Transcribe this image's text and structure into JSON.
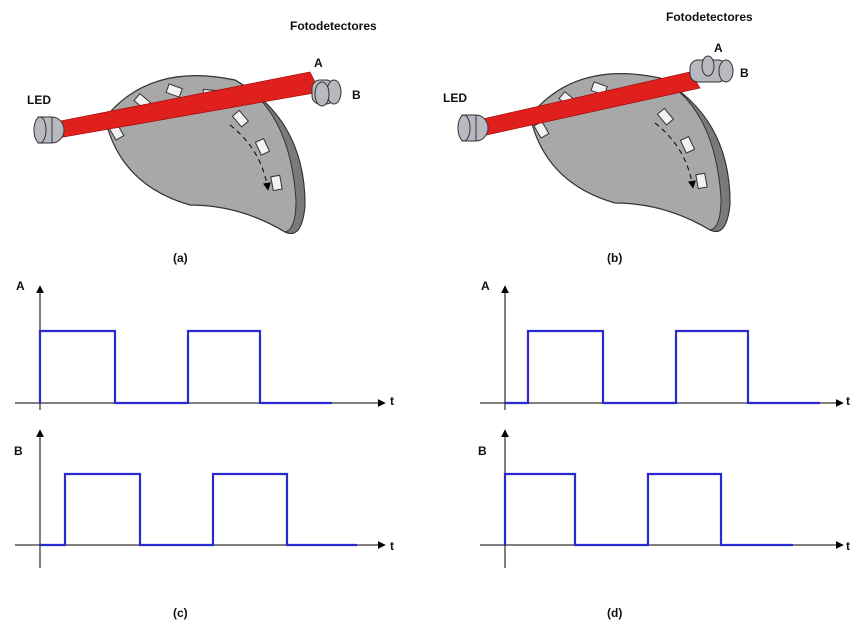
{
  "panels": [
    {
      "label": "(a)",
      "led": "LED",
      "detectors": "Fotodetectores",
      "a": "A",
      "b": "B"
    },
    {
      "label": "(b)",
      "led": "LED",
      "detectors": "Fotodetectores",
      "a": "A",
      "b": "B"
    }
  ],
  "waveforms": [
    {
      "label": "(c)",
      "a_axis": "A",
      "b_axis": "B",
      "t_a": "t",
      "t_b": "t"
    },
    {
      "label": "(d)",
      "a_axis": "A",
      "b_axis": "B",
      "t_a": "t",
      "t_b": "t"
    }
  ]
}
